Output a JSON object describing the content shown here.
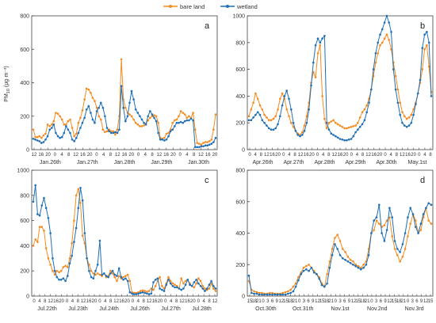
{
  "legend": {
    "position": "top-center",
    "items": [
      {
        "label": "bare land",
        "color": "#f58b1f"
      },
      {
        "label": "wetland",
        "color": "#1f6fb5"
      }
    ]
  },
  "chart_data": [
    {
      "type": "line",
      "panel": "a",
      "ylabel_main": "PM",
      "ylabel_sub": "10",
      "ylabel_unit": "(μg·m⁻³)",
      "ylim": [
        0,
        800
      ],
      "yticks": [
        "0",
        "200",
        "400",
        "600",
        "800"
      ],
      "hour_ticks": [
        "12",
        "16",
        "20",
        "0",
        "4",
        "8",
        "12",
        "16",
        "20",
        "0",
        "4",
        "8",
        "12",
        "16",
        "20",
        "0",
        "4",
        "8",
        "12",
        "16",
        "20",
        "0",
        "4",
        "8",
        "12",
        "16",
        "20"
      ],
      "date_labels": [
        "Jan.26th",
        "Jan.27th",
        "Jan.28th",
        "Jan.29th",
        "Jan.30th"
      ],
      "series": [
        {
          "name": "bare land",
          "values": [
            120,
            75,
            75,
            80,
            70,
            85,
            95,
            150,
            140,
            150,
            170,
            220,
            215,
            200,
            180,
            150,
            150,
            170,
            180,
            130,
            80,
            95,
            160,
            190,
            235,
            300,
            365,
            360,
            340,
            310,
            290,
            250,
            200,
            180,
            120,
            105,
            110,
            120,
            110,
            110,
            90,
            120,
            200,
            540,
            300,
            250,
            220,
            210,
            200,
            180,
            160,
            150,
            140,
            140,
            145,
            155,
            175,
            190,
            200,
            205,
            200,
            160,
            70,
            65,
            70,
            95,
            100,
            120,
            160,
            175,
            180,
            200,
            230,
            220,
            210,
            190,
            200,
            190,
            220,
            120,
            40,
            35,
            30,
            40,
            45,
            45,
            50,
            60,
            120,
            210
          ]
        },
        {
          "name": "wetland",
          "values": [
            65,
            60,
            55,
            50,
            40,
            45,
            60,
            80,
            120,
            130,
            150,
            100,
            80,
            70,
            75,
            100,
            140,
            120,
            100,
            60,
            50,
            70,
            100,
            130,
            160,
            190,
            240,
            260,
            220,
            180,
            160,
            230,
            250,
            280,
            250,
            200,
            130,
            110,
            100,
            100,
            105,
            100,
            120,
            380,
            250,
            170,
            200,
            280,
            350,
            300,
            240,
            220,
            200,
            180,
            160,
            150,
            200,
            230,
            210,
            190,
            170,
            100,
            60,
            60,
            55,
            60,
            80,
            110,
            120,
            140,
            160,
            160,
            165,
            160,
            170,
            175,
            175,
            185,
            175,
            15,
            15,
            15,
            20,
            20,
            25,
            25,
            30,
            35,
            45,
            70
          ]
        }
      ]
    },
    {
      "type": "line",
      "panel": "b",
      "ylim": [
        0,
        1000
      ],
      "yticks": [
        "0",
        "200",
        "400",
        "600",
        "800",
        "1000"
      ],
      "hour_ticks": [
        "0",
        "4",
        "8",
        "12",
        "16",
        "20",
        "0",
        "4",
        "8",
        "12",
        "16",
        "20",
        "0",
        "4",
        "8",
        "12",
        "16",
        "20",
        "0",
        "4",
        "8",
        "12",
        "16",
        "20",
        "0",
        "4",
        "8",
        "12",
        "16",
        "20",
        "0",
        "4",
        "8"
      ],
      "date_labels": [
        "Apr.26th",
        "Apr.27th",
        "Apr.28th",
        "Apr.29th",
        "Apr.30th",
        "May.1st"
      ],
      "series": [
        {
          "name": "bare land",
          "values": [
            250,
            300,
            350,
            420,
            380,
            330,
            300,
            260,
            240,
            220,
            220,
            230,
            250,
            300,
            380,
            420,
            380,
            300,
            250,
            200,
            170,
            140,
            120,
            110,
            130,
            180,
            250,
            350,
            500,
            580,
            540,
            720,
            780,
            400,
            230,
            160,
            200,
            210,
            220,
            200,
            190,
            180,
            170,
            160,
            160,
            165,
            170,
            175,
            180,
            200,
            240,
            280,
            300,
            330,
            380,
            450,
            550,
            650,
            720,
            780,
            800,
            830,
            860,
            820,
            750,
            650,
            550,
            450,
            350,
            280,
            250,
            230,
            240,
            260,
            300,
            350,
            420,
            500,
            600,
            750,
            780,
            620,
            430
          ]
        },
        {
          "name": "wetland",
          "values": [
            220,
            220,
            240,
            260,
            280,
            260,
            220,
            200,
            180,
            160,
            150,
            150,
            160,
            190,
            250,
            330,
            400,
            440,
            380,
            300,
            200,
            140,
            110,
            100,
            110,
            140,
            200,
            300,
            480,
            650,
            780,
            830,
            800,
            830,
            850,
            200,
            150,
            120,
            110,
            100,
            90,
            80,
            75,
            70,
            70,
            75,
            80,
            100,
            130,
            150,
            170,
            190,
            220,
            280,
            350,
            450,
            600,
            720,
            800,
            860,
            900,
            950,
            1000,
            950,
            880,
            600,
            450,
            350,
            260,
            200,
            180,
            170,
            180,
            200,
            260,
            340,
            420,
            520,
            760,
            860,
            880,
            800,
            400
          ]
        }
      ]
    },
    {
      "type": "line",
      "panel": "c",
      "ylim": [
        0,
        1000
      ],
      "yticks": [
        "0",
        "200",
        "400",
        "600",
        "800",
        "1000"
      ],
      "hour_ticks": [
        "0",
        "4",
        "8",
        "12",
        "16",
        "20",
        "0",
        "4",
        "8",
        "12",
        "16",
        "20",
        "0",
        "4",
        "8",
        "12",
        "16",
        "20",
        "0",
        "4",
        "8",
        "12",
        "16",
        "20",
        "0",
        "4",
        "8",
        "12",
        "16",
        "20",
        "0",
        "4",
        "8",
        "12"
      ],
      "date_labels": [
        "Jul.22th",
        "Jul.23th",
        "Jul.24th",
        "Jul.26th",
        "Jul.27th",
        "Jul.28th"
      ],
      "series": [
        {
          "name": "bare land",
          "values": [
            400,
            450,
            430,
            550,
            550,
            520,
            380,
            300,
            250,
            200,
            170,
            200,
            190,
            200,
            230,
            240,
            230,
            300,
            420,
            600,
            800,
            850,
            740,
            480,
            420,
            300,
            250,
            200,
            180,
            170,
            180,
            170,
            160,
            180,
            150,
            160,
            200,
            180,
            150,
            120,
            160,
            140,
            150,
            160,
            170,
            120,
            30,
            25,
            25,
            30,
            40,
            45,
            40,
            35,
            40,
            60,
            50,
            80,
            120,
            150,
            80,
            60,
            100,
            150,
            120,
            100,
            90,
            80,
            60,
            140,
            100,
            120,
            130,
            100,
            80,
            70,
            100,
            140,
            120,
            80,
            60,
            50,
            60,
            100,
            60,
            40
          ]
        },
        {
          "name": "wetland",
          "values": [
            750,
            880,
            650,
            640,
            720,
            780,
            700,
            620,
            500,
            300,
            200,
            150,
            130,
            130,
            140,
            120,
            160,
            260,
            320,
            430,
            540,
            700,
            860,
            760,
            500,
            300,
            200,
            150,
            140,
            200,
            250,
            440,
            170,
            180,
            160,
            150,
            180,
            200,
            170,
            160,
            220,
            150,
            130,
            140,
            120,
            30,
            20,
            15,
            15,
            20,
            25,
            30,
            25,
            20,
            15,
            20,
            110,
            130,
            140,
            60,
            50,
            40,
            90,
            130,
            100,
            80,
            70,
            70,
            60,
            50,
            60,
            90,
            130,
            90,
            80,
            110,
            130,
            100,
            80,
            60,
            40,
            60,
            90,
            120,
            80,
            60
          ]
        }
      ]
    },
    {
      "type": "line",
      "panel": "d",
      "ylim": [
        0,
        800
      ],
      "yticks": [
        "0",
        "200",
        "400",
        "600",
        "800"
      ],
      "hour_ticks": [
        "15",
        "18",
        "21",
        "0",
        "3",
        "6",
        "9",
        "12",
        "15",
        "18",
        "21",
        "0",
        "3",
        "6",
        "9",
        "12",
        "15",
        "18",
        "21",
        "0",
        "3",
        "6",
        "9",
        "12",
        "15",
        "18",
        "21",
        "0",
        "3",
        "6",
        "9",
        "12",
        "15",
        "18",
        "21",
        "0",
        "3",
        "6",
        "9",
        "12",
        "15"
      ],
      "date_labels": [
        "Oct.30th",
        "Oct.31th",
        "Nov.1st",
        "Nov.2nd",
        "Nov.3rd"
      ],
      "series": [
        {
          "name": "bare land",
          "values": [
            95,
            40,
            30,
            25,
            20,
            20,
            15,
            15,
            20,
            20,
            15,
            15,
            15,
            20,
            25,
            30,
            40,
            60,
            80,
            120,
            150,
            180,
            190,
            200,
            180,
            160,
            140,
            120,
            80,
            60,
            140,
            220,
            300,
            370,
            390,
            350,
            300,
            280,
            250,
            230,
            220,
            200,
            190,
            180,
            200,
            220,
            300,
            400,
            420,
            480,
            460,
            440,
            450,
            480,
            500,
            380,
            300,
            260,
            220,
            250,
            300,
            380,
            460,
            520,
            480,
            400,
            420,
            500,
            560,
            480,
            460
          ]
        },
        {
          "name": "wetland",
          "values": [
            130,
            20,
            15,
            15,
            10,
            10,
            10,
            10,
            10,
            10,
            10,
            10,
            10,
            10,
            10,
            15,
            20,
            30,
            60,
            100,
            140,
            160,
            170,
            160,
            180,
            150,
            140,
            110,
            70,
            60,
            80,
            180,
            260,
            330,
            300,
            260,
            240,
            230,
            220,
            210,
            200,
            190,
            180,
            170,
            180,
            200,
            260,
            400,
            480,
            500,
            580,
            400,
            350,
            420,
            560,
            500,
            350,
            300,
            280,
            330,
            400,
            500,
            560,
            520,
            440,
            400,
            460,
            520,
            560,
            590,
            580
          ]
        }
      ]
    }
  ]
}
